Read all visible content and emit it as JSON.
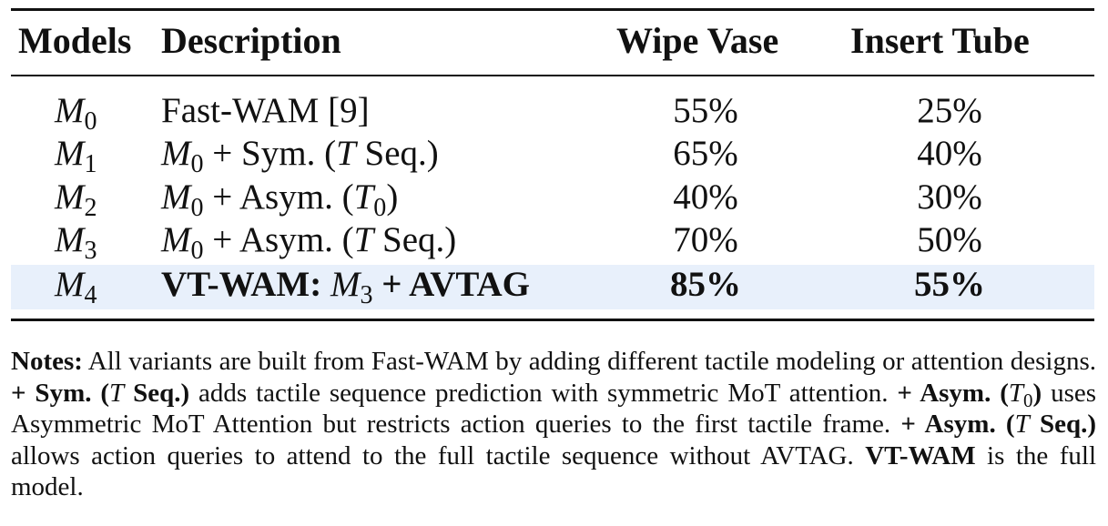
{
  "table": {
    "headers": {
      "models": "Models",
      "description": "Description",
      "wipe_vase": "Wipe Vase",
      "insert_tube": "Insert Tube"
    },
    "rows": [
      {
        "model_sym": "M",
        "model_sub": "0",
        "desc_plain": "Fast-WAM [9]",
        "wipe_vase": "55%",
        "insert_tube": "25%"
      },
      {
        "model_sym": "M",
        "model_sub": "1",
        "desc_base_sym": "M",
        "desc_base_sub": "0",
        "desc_op": " + Sym. (",
        "desc_var": "T",
        "desc_tail": " Seq.)",
        "wipe_vase": "65%",
        "insert_tube": "40%"
      },
      {
        "model_sym": "M",
        "model_sub": "2",
        "desc_base_sym": "M",
        "desc_base_sub": "0",
        "desc_op": " + Asym. (",
        "desc_var": "T",
        "desc_var_sub": "0",
        "desc_tail": ")",
        "wipe_vase": "40%",
        "insert_tube": "30%"
      },
      {
        "model_sym": "M",
        "model_sub": "3",
        "desc_base_sym": "M",
        "desc_base_sub": "0",
        "desc_op": " + Asym. (",
        "desc_var": "T",
        "desc_tail": " Seq.)",
        "wipe_vase": "70%",
        "insert_tube": "50%"
      },
      {
        "model_sym": "M",
        "model_sub": "4",
        "desc_lead": "VT-WAM: ",
        "desc_base_sym": "M",
        "desc_base_sub": "3",
        "desc_tail": " + AVTAG",
        "wipe_vase": "85%",
        "insert_tube": "55%",
        "highlighted": true
      }
    ],
    "highlight_color": "#e8f0fb",
    "rule_color": "#111111"
  },
  "notes": {
    "p1_bold": "Notes:",
    "p1": " All variants are built from Fast-WAM by adding different tactile modeling or attention designs. ",
    "p2_bold_a": "+ Sym. (",
    "p2_var": "T",
    "p2_bold_b": " Seq.)",
    "p2": " adds tactile sequence prediction with symmetric MoT attention. ",
    "p3_bold_a": "+ Asym. (",
    "p3_var": "T",
    "p3_var_sub": "0",
    "p3_bold_b": ")",
    "p3": " uses Asymmetric MoT Attention but restricts action queries to the first tactile frame. ",
    "p4_bold_a": "+ Asym. (",
    "p4_var": "T",
    "p4_bold_b": " Seq.)",
    "p4": " allows action queries to attend to the full tactile sequence without AVTAG. ",
    "p5_bold": "VT-WAM",
    "p5": " is the full model."
  }
}
